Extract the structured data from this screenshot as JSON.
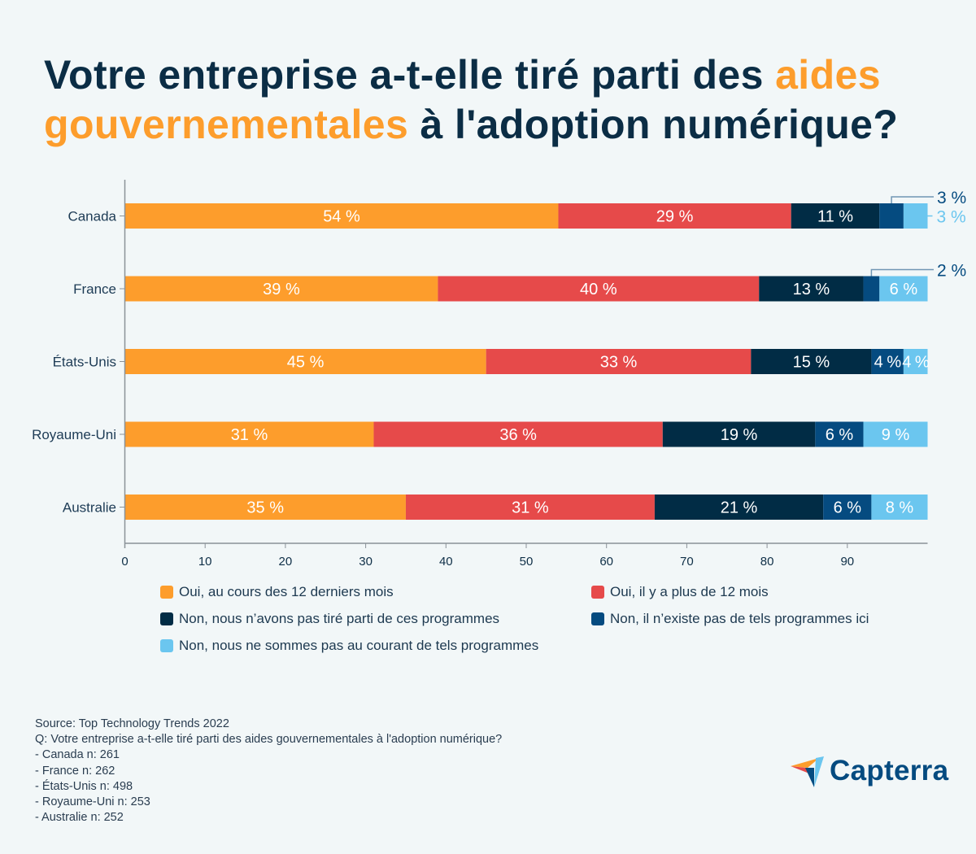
{
  "title": {
    "part1": "Votre entreprise a-t-elle tiré parti des ",
    "highlight1": "aides",
    "highlight2": "gouvernementales",
    "part2": " à l'adoption numérique?"
  },
  "colors": {
    "background": "#f2f7f8",
    "title": "#0b2d45",
    "accent": "#fd9d2c"
  },
  "chart_data": {
    "type": "bar",
    "orientation": "horizontal",
    "stacked": true,
    "title": "Votre entreprise a-t-elle tiré parti des aides gouvernementales à l'adoption numérique?",
    "xlabel": "",
    "ylabel": "",
    "xlim": [
      0,
      100
    ],
    "xticks": [
      "0",
      "10",
      "20",
      "30",
      "40",
      "50",
      "60",
      "70",
      "80",
      "90"
    ],
    "grid": false,
    "legend_position": "bottom",
    "categories": [
      "Canada",
      "France",
      "États-Unis",
      "Royaume-Uni",
      "Australie"
    ],
    "series": [
      {
        "name": "Oui, au cours des 12 derniers mois",
        "color": "#fd9d2c",
        "values": [
          54,
          39,
          45,
          31,
          35
        ]
      },
      {
        "name": "Oui, il y a plus de 12 mois",
        "color": "#e64a4a",
        "values": [
          29,
          40,
          33,
          36,
          31
        ]
      },
      {
        "name": "Non, nous n’avons pas tiré parti de ces programmes",
        "color": "#012c45",
        "values": [
          11,
          13,
          15,
          19,
          21
        ]
      },
      {
        "name": "Non, il n’existe pas de tels programmes ici",
        "color": "#054b80",
        "values": [
          3,
          2,
          4,
          6,
          6
        ]
      },
      {
        "name": "Non, nous ne sommes pas au courant de tels programmes",
        "color": "#6bc6ef",
        "values": [
          3,
          6,
          4,
          9,
          8
        ]
      }
    ],
    "value_suffix": " %",
    "outside_labels": [
      {
        "category": "Canada",
        "series": 3,
        "text": "3 %"
      },
      {
        "category": "Canada",
        "series": 4,
        "text": "3 %"
      },
      {
        "category": "France",
        "series": 3,
        "text": "2 %"
      }
    ]
  },
  "legend": {
    "items": [
      {
        "label": "Oui, au cours des 12 derniers mois",
        "color": "#fd9d2c"
      },
      {
        "label": "Oui, il y a plus de 12 mois",
        "color": "#e64a4a"
      },
      {
        "label": "Non, nous n’avons pas tiré parti de ces programmes",
        "color": "#012c45"
      },
      {
        "label": "Non, il n’existe pas de tels programmes ici",
        "color": "#054b80"
      },
      {
        "label": "Non, nous ne sommes pas au courant de tels programmes",
        "color": "#6bc6ef"
      }
    ]
  },
  "source": {
    "lines": [
      "Source: Top Technology Trends 2022",
      "Q: Votre entreprise a-t-elle tiré parti des aides gouvernementales à l'adoption numérique?",
      "- Canada n: 261",
      "- France n: 262",
      "- États-Unis n: 498",
      "- Royaume-Uni n: 253",
      "- Australie n: 252"
    ]
  },
  "logo": {
    "text": "Capterra",
    "icon": "paper-plane-logo-icon"
  }
}
